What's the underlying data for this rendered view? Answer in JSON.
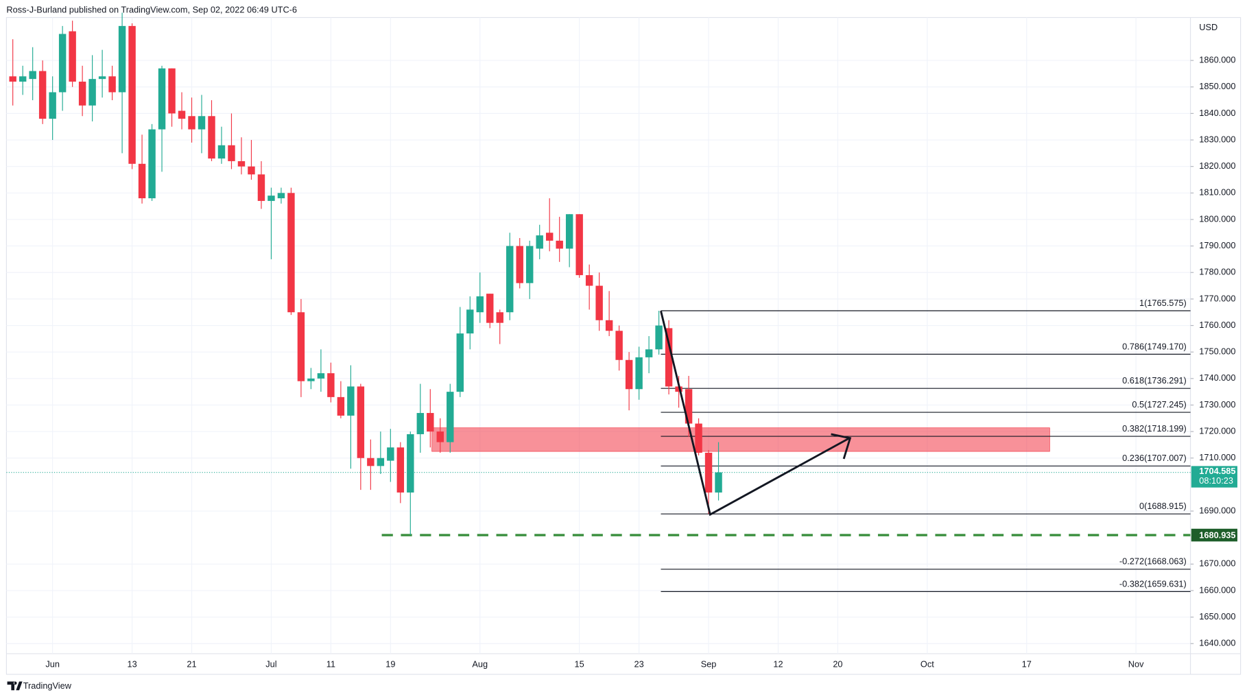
{
  "header": {
    "text": "Ross-J-Burland published on TradingView.com, Sep 02, 2022 06:49 UTC-6"
  },
  "footer": {
    "brand": "TradingView"
  },
  "chart_data": {
    "type": "candlestick",
    "currency": "USD",
    "categories": [
      null,
      null,
      null,
      null,
      "Jun",
      null,
      null,
      null,
      null,
      null,
      null,
      null,
      "13",
      null,
      null,
      null,
      null,
      null,
      "21",
      null,
      null,
      null,
      null,
      null,
      null,
      null,
      "Jul",
      null,
      null,
      null,
      null,
      null,
      "11",
      null,
      null,
      null,
      null,
      null,
      "19",
      null,
      null,
      null,
      null,
      null,
      null,
      null,
      null,
      "Aug",
      null,
      null,
      null,
      null,
      null,
      null,
      null,
      null,
      null,
      "15",
      null,
      null,
      null,
      null,
      null,
      "23",
      null,
      null,
      null,
      null,
      null,
      null,
      "Sep",
      null,
      null,
      null,
      null,
      null,
      null,
      "12",
      null,
      null,
      null,
      null,
      null,
      "20",
      null,
      null,
      null,
      null,
      null,
      null,
      null,
      null,
      "Oct",
      null,
      null,
      null,
      null,
      null,
      null,
      null,
      null,
      null,
      "17",
      null,
      null,
      null,
      null,
      null,
      null,
      null,
      null,
      null,
      null,
      "Nov",
      null,
      null,
      null
    ],
    "open": [
      1854,
      1852,
      1853,
      1856,
      1838,
      1848,
      1871,
      1852,
      1843,
      1853,
      1854,
      1848,
      1873,
      1821,
      1808,
      1834,
      1857,
      1841,
      1839,
      1834,
      1839,
      1823,
      1828,
      1822,
      1820,
      1817,
      1807,
      1808,
      1810,
      1765,
      1739,
      1740,
      1742,
      1733,
      1726,
      1737,
      1710,
      1707,
      1709,
      1714,
      1697,
      1719,
      1727,
      1720,
      1716,
      1735,
      1757,
      1765,
      1772,
      1765,
      1765,
      1790,
      1776,
      1789,
      1795,
      1792,
      1789,
      1802,
      1779,
      1775,
      1762,
      1758,
      1747,
      1736,
      1748,
      1751,
      1759,
      1737,
      1736,
      1723,
      1712,
      1697,
      null,
      null,
      null,
      null,
      null,
      null,
      null,
      null,
      null,
      null,
      null,
      null,
      null,
      null,
      null,
      null,
      null,
      null,
      null,
      null,
      null,
      null,
      null,
      null,
      null,
      null,
      null,
      null,
      null,
      null,
      null,
      null,
      null,
      null,
      null,
      null,
      null,
      null,
      null,
      null,
      null,
      null,
      null,
      null,
      null
    ],
    "high": [
      1868,
      1858,
      1865,
      1860,
      1854,
      1873,
      1875,
      1858,
      1862,
      1864,
      1858,
      1878,
      1874,
      1832,
      1836,
      1858,
      1857,
      1848,
      1846,
      1847,
      1845,
      1835,
      1840,
      1831,
      1830,
      1822,
      1812,
      1812,
      1812,
      1770,
      1744,
      1751,
      1746,
      1739,
      1745,
      1738,
      1717,
      1720,
      1721,
      1716,
      1720,
      1738,
      1736,
      1725,
      1738,
      1767,
      1771,
      1780,
      1772,
      1766,
      1795,
      1793,
      1792,
      1798,
      1808,
      1801,
      1802,
      1802,
      1783,
      1780,
      1773,
      1760,
      1750,
      1752,
      1756,
      1765.575,
      1762,
      1741,
      1741,
      1725,
      1713,
      1716,
      null,
      null,
      null,
      null,
      null,
      null,
      null,
      null,
      null,
      null,
      null,
      null,
      null,
      null,
      null,
      null,
      null,
      null,
      null,
      null,
      null,
      null,
      null,
      null,
      null,
      null,
      null,
      null,
      null,
      null,
      null,
      null,
      null,
      null,
      null,
      null,
      null,
      null,
      null,
      null,
      null,
      null,
      null,
      null,
      null
    ],
    "low": [
      1843,
      1847,
      1845,
      1836,
      1830,
      1841,
      1850,
      1839,
      1837,
      1846,
      1845,
      1825,
      1819,
      1806,
      1807,
      1818,
      1835,
      1834,
      1829,
      1825,
      1822,
      1821,
      1819,
      1817,
      1815,
      1804,
      1785,
      1806,
      1764,
      1733,
      1736,
      1735,
      1731,
      1725,
      1706,
      1698,
      1698,
      1704,
      1701,
      1693,
      1680.935,
      1712,
      1714,
      1712,
      1712,
      1733,
      1751,
      1761,
      1759,
      1753,
      1762,
      1774,
      1770,
      1785,
      1788,
      1784,
      1782,
      1778,
      1766,
      1758,
      1756,
      1743,
      1728,
      1732,
      1742,
      1749,
      1734,
      1729,
      1718,
      1711,
      1688.915,
      1694,
      null,
      null,
      null,
      null,
      null,
      null,
      null,
      null,
      null,
      null,
      null,
      null,
      null,
      null,
      null,
      null,
      null,
      null,
      null,
      null,
      null,
      null,
      null,
      null,
      null,
      null,
      null,
      null,
      null,
      null,
      null,
      null,
      null,
      null,
      null,
      null,
      null,
      null,
      null,
      null,
      null,
      null,
      null,
      null,
      null
    ],
    "close": [
      1852,
      1854,
      1856,
      1838,
      1848,
      1870,
      1852,
      1843,
      1853,
      1854,
      1848,
      1873,
      1821,
      1808,
      1834,
      1857,
      1840,
      1838,
      1834,
      1839,
      1823,
      1828,
      1822,
      1820,
      1817,
      1807,
      1809,
      1810,
      1765,
      1739,
      1740,
      1742,
      1733,
      1726,
      1737,
      1710,
      1707,
      1710,
      1714,
      1697,
      1719,
      1727,
      1720,
      1716,
      1735,
      1757,
      1766,
      1771,
      1761,
      1761,
      1790,
      1776,
      1790,
      1794,
      1792,
      1789,
      1802,
      1779,
      1775,
      1762,
      1758,
      1747,
      1736,
      1748,
      1751,
      1760,
      1737,
      1735,
      1723,
      1712,
      1697,
      1704.585,
      null,
      null,
      null,
      null,
      null,
      null,
      null,
      null,
      null,
      null,
      null,
      null,
      null,
      null,
      null,
      null,
      null,
      null,
      null,
      null,
      null,
      null,
      null,
      null,
      null,
      null,
      null,
      null,
      null,
      null,
      null,
      null,
      null,
      null,
      null,
      null,
      null,
      null,
      null,
      null,
      null,
      null,
      null,
      null,
      null
    ],
    "up_color": "#22ab94",
    "down_color": "#f23645",
    "ylim": [
      1636.2,
      1876.2
    ],
    "yticks": [
      {
        "value": 1640,
        "label": "1640.000"
      },
      {
        "value": 1650,
        "label": "1650.000"
      },
      {
        "value": 1660,
        "label": "1660.000"
      },
      {
        "value": 1670,
        "label": "1670.000"
      },
      {
        "value": 1690,
        "label": "1690.000"
      },
      {
        "value": 1710,
        "label": "1710.000"
      },
      {
        "value": 1720,
        "label": "1720.000"
      },
      {
        "value": 1730,
        "label": "1730.000"
      },
      {
        "value": 1740,
        "label": "1740.000"
      },
      {
        "value": 1750,
        "label": "1750.000"
      },
      {
        "value": 1760,
        "label": "1760.000"
      },
      {
        "value": 1770,
        "label": "1770.000"
      },
      {
        "value": 1780,
        "label": "1780.000"
      },
      {
        "value": 1790,
        "label": "1790.000"
      },
      {
        "value": 1800,
        "label": "1800.000"
      },
      {
        "value": 1810,
        "label": "1810.000"
      },
      {
        "value": 1820,
        "label": "1820.000"
      },
      {
        "value": 1830,
        "label": "1830.000"
      },
      {
        "value": 1840,
        "label": "1840.000"
      },
      {
        "value": 1850,
        "label": "1850.000"
      },
      {
        "value": 1860,
        "label": "1860.000"
      }
    ],
    "grid": true,
    "last_price": 1704.585,
    "countdown": "08:10:23",
    "support_level": 1680.935,
    "zone": {
      "high": 1721.4,
      "low": 1712.5
    },
    "fib_levels": [
      {
        "value": 1765.575,
        "label": "1(1765.575)"
      },
      {
        "value": 1749.17,
        "label": "0.786(1749.170)"
      },
      {
        "value": 1736.291,
        "label": "0.618(1736.291)"
      },
      {
        "value": 1727.245,
        "label": "0.5(1727.245)"
      },
      {
        "value": 1718.199,
        "label": "0.382(1718.199)"
      },
      {
        "value": 1707.007,
        "label": "0.236(1707.007)"
      },
      {
        "value": 1688.915,
        "label": "0(1688.915)"
      },
      {
        "value": 1668.063,
        "label": "-0.272(1668.063)"
      },
      {
        "value": 1659.631,
        "label": "-0.382(1659.631)"
      }
    ]
  }
}
